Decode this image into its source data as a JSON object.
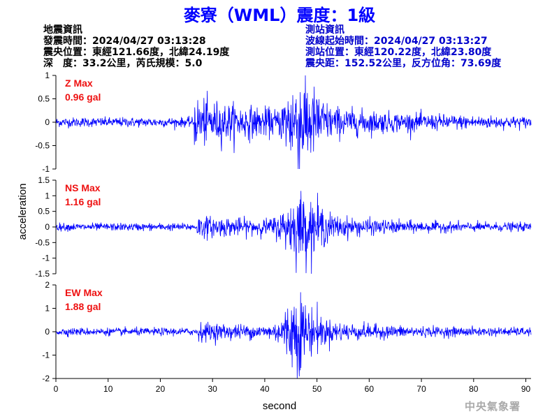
{
  "title": "麥寮（WML）震度：1級",
  "quake_info": {
    "heading": "地震資訊",
    "time": "發震時間：2024/04/27 03:13:28",
    "location": "震央位置：東經121.66度，北緯24.19度",
    "depth_mag": "深　度：33.2公里，芮氏規模：5.0"
  },
  "station_info": {
    "heading": "測站資訊",
    "wave_start": "波線起始時間：2024/04/27 03:13:27",
    "location": "測站位置：東經120.22度，北緯23.80度",
    "distance": "震央距：152.52公里，反方位角：73.69度"
  },
  "watermark": "中央氣象署",
  "colors": {
    "trace": "#0000ff",
    "max_label": "#ee1111",
    "title": "#0000ff"
  },
  "chart_data": [
    {
      "type": "line",
      "component": "Z",
      "max_label": "Z Max",
      "max_value": "0.96 gal",
      "ylim": [
        -1,
        1
      ],
      "yticks": [
        "1",
        "0.5",
        "0",
        "-0.5",
        "-1"
      ],
      "yvals": [
        1,
        0.5,
        0,
        -0.5,
        -1
      ]
    },
    {
      "type": "line",
      "component": "NS",
      "max_label": "NS Max",
      "max_value": "1.16 gal",
      "ylim": [
        -1.5,
        1.5
      ],
      "yticks": [
        "1.5",
        "1",
        "0.5",
        "0",
        "-0.5",
        "-1",
        "-1.5"
      ],
      "yvals": [
        1.5,
        1,
        0.5,
        0,
        -0.5,
        -1,
        -1.5
      ]
    },
    {
      "type": "line",
      "component": "EW",
      "max_label": "EW Max",
      "max_value": "1.88 gal",
      "ylim": [
        -2,
        2
      ],
      "yticks": [
        "2",
        "1",
        "0",
        "-1",
        "-2"
      ],
      "yvals": [
        2,
        1,
        0,
        -1,
        -2
      ]
    }
  ],
  "xaxis": {
    "label": "second",
    "xlim": [
      0,
      91
    ],
    "ticks": [
      "0",
      "10",
      "20",
      "30",
      "40",
      "50",
      "60",
      "70",
      "80",
      "90"
    ],
    "tvals": [
      0,
      10,
      20,
      30,
      40,
      50,
      60,
      70,
      80,
      90
    ]
  },
  "yaxis": {
    "label": "acceleration"
  }
}
